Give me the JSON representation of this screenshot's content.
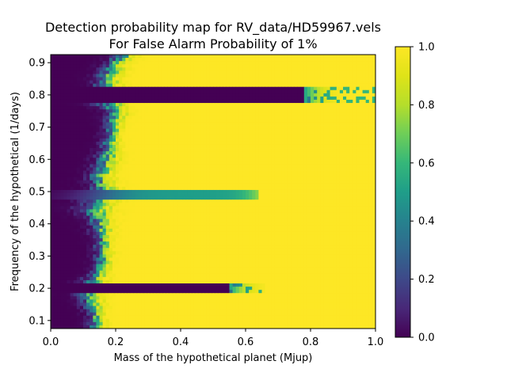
{
  "chart_data": {
    "type": "heatmap",
    "title_line1": "Detection probability map for RV_data/HD59967.vels",
    "title_line2": "For False Alarm Probability of 1%",
    "xlabel": "Mass of the hypothetical planet (Mjup)",
    "ylabel": "Frequency of the hypothetical (1/days)",
    "xlim": [
      0.0,
      1.0
    ],
    "ylim": [
      0.075,
      0.925
    ],
    "xticks": [
      0.0,
      0.2,
      0.4,
      0.6,
      0.8,
      1.0
    ],
    "xtick_labels": [
      "0.0",
      "0.2",
      "0.4",
      "0.6",
      "0.8",
      "1.0"
    ],
    "yticks": [
      0.1,
      0.2,
      0.3,
      0.4,
      0.5,
      0.6,
      0.7,
      0.8,
      0.9
    ],
    "ytick_labels": [
      "0.1",
      "0.2",
      "0.3",
      "0.4",
      "0.5",
      "0.6",
      "0.7",
      "0.8",
      "0.9"
    ],
    "colormap": "viridis",
    "colorbar": {
      "range": [
        0.0,
        1.0
      ],
      "ticks": [
        0.0,
        0.2,
        0.4,
        0.6,
        0.8,
        1.0
      ],
      "tick_labels": [
        "0.0",
        "0.2",
        "0.4",
        "0.6",
        "0.8",
        "1.0"
      ]
    },
    "value_description": "detection probability",
    "detection_threshold_mass_by_frequency": [
      {
        "frequency": 0.085,
        "mass_50pct": 0.14,
        "width": 0.03
      },
      {
        "frequency": 0.12,
        "mass_50pct": 0.135,
        "width": 0.03
      },
      {
        "frequency": 0.17,
        "mass_50pct": 0.12,
        "width": 0.04
      },
      {
        "frequency": 0.2,
        "mass_50pct": 0.11,
        "width": 0.05
      },
      {
        "frequency": 0.25,
        "mass_50pct": 0.15,
        "width": 0.03
      },
      {
        "frequency": 0.3,
        "mass_50pct": 0.16,
        "width": 0.03
      },
      {
        "frequency": 0.35,
        "mass_50pct": 0.16,
        "width": 0.03
      },
      {
        "frequency": 0.4,
        "mass_50pct": 0.15,
        "width": 0.04
      },
      {
        "frequency": 0.45,
        "mass_50pct": 0.13,
        "width": 0.06
      },
      {
        "frequency": 0.5,
        "mass_50pct": 0.16,
        "width": 0.05
      },
      {
        "frequency": 0.55,
        "mass_50pct": 0.15,
        "width": 0.04
      },
      {
        "frequency": 0.6,
        "mass_50pct": 0.17,
        "width": 0.04
      },
      {
        "frequency": 0.65,
        "mass_50pct": 0.18,
        "width": 0.03
      },
      {
        "frequency": 0.7,
        "mass_50pct": 0.19,
        "width": 0.03
      },
      {
        "frequency": 0.75,
        "mass_50pct": 0.2,
        "width": 0.04
      },
      {
        "frequency": 0.78,
        "mass_50pct": 0.17,
        "width": 0.06
      },
      {
        "frequency": 0.85,
        "mass_50pct": 0.17,
        "width": 0.04
      },
      {
        "frequency": 0.9,
        "mass_50pct": 0.2,
        "width": 0.04
      },
      {
        "frequency": 0.925,
        "mass_50pct": 0.23,
        "width": 0.04
      }
    ],
    "low_sensitivity_bands": [
      {
        "frequency_min": 0.188,
        "frequency_max": 0.218,
        "mass_50pct": 0.55,
        "tail_extent": 0.66
      },
      {
        "frequency_min": 0.78,
        "frequency_max": 0.822,
        "mass_50pct": 0.78,
        "tail_extent": 1.0
      }
    ],
    "spikes": [
      {
        "frequency": 0.49,
        "frequency_width": 0.012,
        "mass_extent": 0.64
      }
    ]
  }
}
